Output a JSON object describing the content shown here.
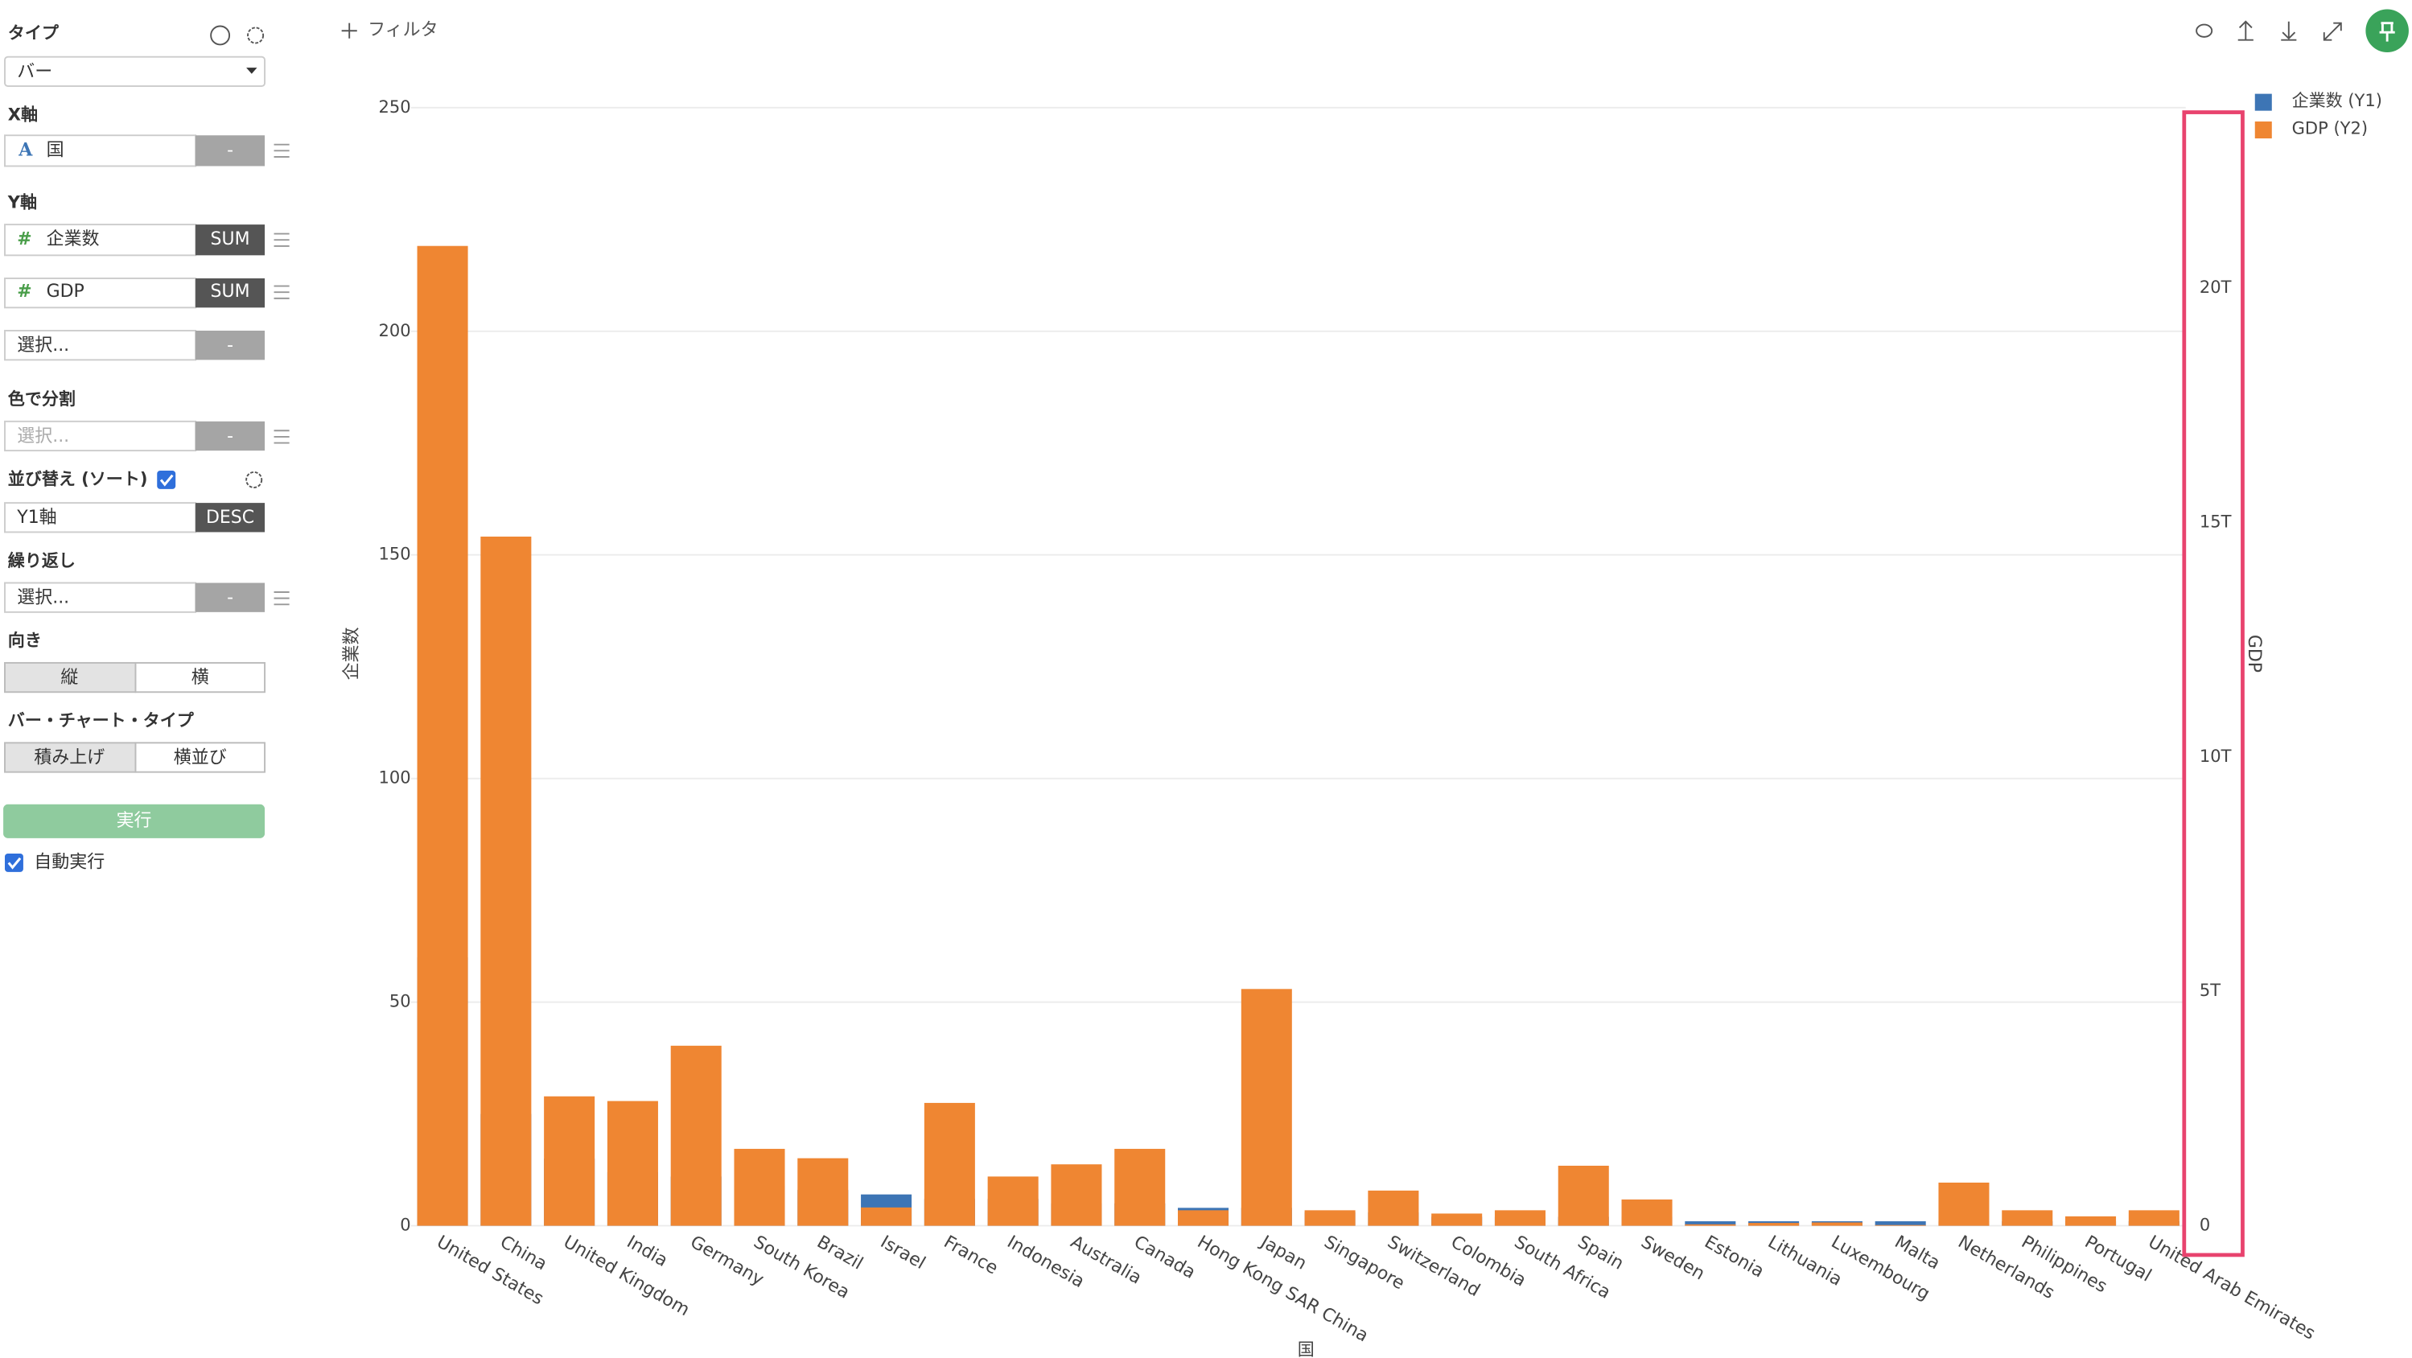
{
  "toolbar": {
    "filter": "フィルタ"
  },
  "sidebar": {
    "type_label": "タイプ",
    "type_value": "バー",
    "x_axis_label": "X軸",
    "x_field": "国",
    "x_agg": "-",
    "y_axis_label": "Y軸",
    "y_fields": [
      {
        "name": "企業数",
        "agg": "SUM"
      },
      {
        "name": "GDP",
        "agg": "SUM"
      },
      {
        "name": "選択...",
        "agg": "-"
      }
    ],
    "color_label": "色で分割",
    "color_field": "選択...",
    "color_agg": "-",
    "sort_label": "並び替え (ソート)",
    "sort_field": "Y1軸",
    "sort_order": "DESC",
    "repeat_label": "繰り返し",
    "repeat_field": "選択...",
    "repeat_agg": "-",
    "orientation_label": "向き",
    "orientation_options": [
      "縦",
      "横"
    ],
    "bar_type_label": "バー・チャート・タイプ",
    "bar_type_options": [
      "積み上げ",
      "横並び"
    ],
    "run_button": "実行",
    "auto_run": "自動実行"
  },
  "chart_data": {
    "type": "bar",
    "x_label": "国",
    "y_label": "企業数",
    "y2_label": "GDP",
    "categories": [
      "United States",
      "China",
      "United Kingdom",
      "India",
      "Germany",
      "South Korea",
      "Brazil",
      "Israel",
      "France",
      "Indonesia",
      "Australia",
      "Canada",
      "Hong Kong SAR China",
      "Japan",
      "Singapore",
      "Switzerland",
      "Colombia",
      "South Africa",
      "Spain",
      "Sweden",
      "Estonia",
      "Lithuania",
      "Luxembourg",
      "Malta",
      "Netherlands",
      "Philippines",
      "Portugal",
      "United Arab Emirates"
    ],
    "series": [
      {
        "name": "企業数 (Y1)",
        "color": "#3d75b5",
        "values": [
          60,
          25,
          15,
          12,
          11,
          9,
          8,
          7,
          6,
          6,
          5,
          5,
          4,
          4,
          3,
          3,
          2,
          2,
          2,
          2,
          1,
          1,
          1,
          1,
          1,
          1,
          1,
          1
        ]
      },
      {
        "name": "GDP (Y2)",
        "color": "#ef8632",
        "axis": "y2",
        "values": [
          20900000000000,
          14700000000000,
          2760000000000,
          2660000000000,
          3840000000000,
          1640000000000,
          1440000000000,
          390000000000,
          2620000000000,
          1050000000000,
          1310000000000,
          1640000000000,
          330000000000,
          5050000000000,
          330000000000,
          750000000000,
          260000000000,
          330000000000,
          1280000000000,
          560000000000,
          30000000000,
          60000000000,
          70000000000,
          15000000000,
          920000000000,
          330000000000,
          200000000000,
          330000000000
        ]
      }
    ],
    "ylim": [
      0,
      250
    ],
    "yticks": [
      0,
      50,
      100,
      150,
      200,
      250
    ],
    "y2lim": [
      0,
      23850000000000
    ],
    "y2ticks": [
      0,
      {
        "value": 5000000000000,
        "label": "5T"
      },
      {
        "value": 10000000000000,
        "label": "10T"
      },
      {
        "value": 15000000000000,
        "label": "15T"
      },
      {
        "value": 20000000000000,
        "label": "20T"
      }
    ],
    "grid": true,
    "legend": "top-right"
  }
}
